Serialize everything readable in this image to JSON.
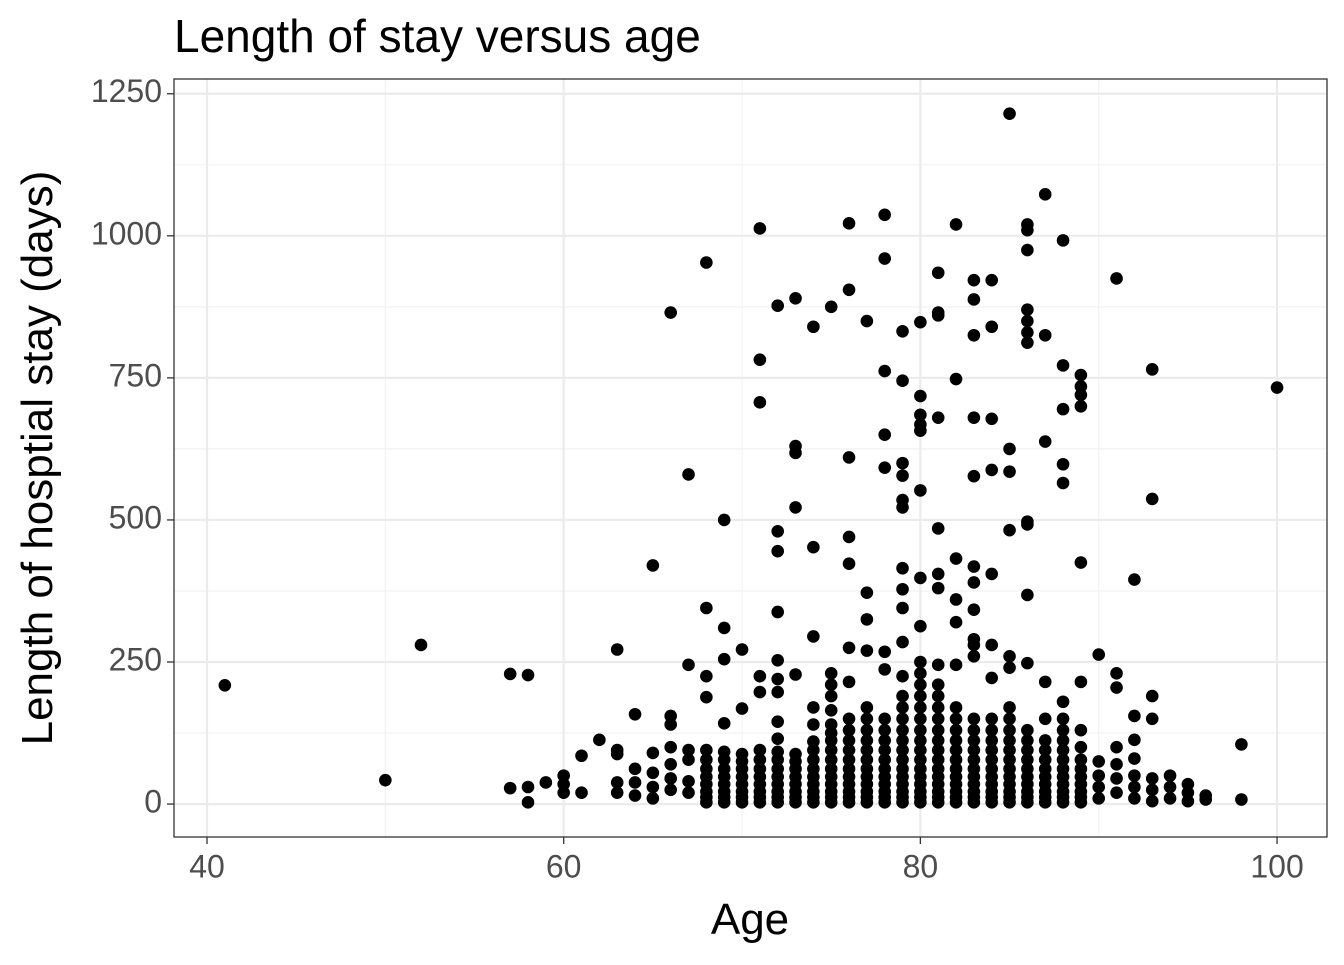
{
  "chart_data": {
    "type": "scatter",
    "title": "Length of stay versus age",
    "x_label": "Age",
    "y_label": "Length of hosptial stay (days)",
    "xlim": [
      38.15,
      102.8
    ],
    "ylim": [
      -58,
      1276
    ],
    "xticks": [
      40,
      60,
      80,
      100
    ],
    "yticks": [
      0,
      250,
      500,
      750,
      1000,
      1250
    ],
    "x_minor_grid": [
      50,
      70,
      90
    ],
    "y_minor_grid": [
      125,
      375,
      625,
      875,
      1125
    ],
    "grid": true,
    "color": "#000000",
    "x": [
      41,
      50,
      52,
      57,
      57,
      58,
      58,
      58,
      59,
      60,
      60,
      60,
      61,
      61,
      62,
      63,
      63,
      63,
      63,
      63,
      64,
      64,
      64,
      64,
      65,
      65,
      65,
      65,
      65,
      66,
      66,
      66,
      66,
      66,
      66,
      66,
      67,
      67,
      67,
      67,
      67,
      67,
      68,
      68,
      68,
      68,
      68,
      68,
      68,
      68,
      68,
      68,
      68,
      68,
      69,
      69,
      69,
      69,
      69,
      69,
      69,
      69,
      69,
      69,
      69,
      69,
      70,
      70,
      70,
      70,
      70,
      70,
      70,
      70,
      70,
      70,
      71,
      71,
      71,
      71,
      71,
      71,
      71,
      71,
      71,
      71,
      71,
      71,
      71,
      72,
      72,
      72,
      72,
      72,
      72,
      72,
      72,
      72,
      72,
      72,
      72,
      72,
      72,
      72,
      72,
      72,
      73,
      73,
      73,
      73,
      73,
      73,
      73,
      73,
      73,
      73,
      73,
      73,
      73,
      74,
      74,
      74,
      74,
      74,
      74,
      74,
      74,
      74,
      74,
      74,
      74,
      74,
      74,
      75,
      75,
      75,
      75,
      75,
      75,
      75,
      75,
      75,
      75,
      75,
      75,
      75,
      75,
      75,
      75,
      76,
      76,
      76,
      76,
      76,
      76,
      76,
      76,
      76,
      76,
      76,
      76,
      76,
      76,
      76,
      76,
      76,
      76,
      77,
      77,
      77,
      77,
      77,
      77,
      77,
      77,
      77,
      77,
      77,
      77,
      77,
      77,
      77,
      77,
      78,
      78,
      78,
      78,
      78,
      78,
      78,
      78,
      78,
      78,
      78,
      78,
      78,
      78,
      78,
      78,
      78,
      78,
      79,
      79,
      79,
      79,
      79,
      79,
      79,
      79,
      79,
      79,
      79,
      79,
      79,
      79,
      79,
      79,
      79,
      79,
      79,
      79,
      79,
      79,
      79,
      79,
      80,
      80,
      80,
      80,
      80,
      80,
      80,
      80,
      80,
      80,
      80,
      80,
      80,
      80,
      80,
      80,
      80,
      80,
      80,
      80,
      80,
      80,
      80,
      80,
      81,
      81,
      81,
      81,
      81,
      81,
      81,
      81,
      81,
      81,
      81,
      81,
      81,
      81,
      81,
      81,
      81,
      81,
      81,
      81,
      81,
      81,
      82,
      82,
      82,
      82,
      82,
      82,
      82,
      82,
      82,
      82,
      82,
      82,
      82,
      82,
      82,
      82,
      82,
      82,
      83,
      83,
      83,
      83,
      83,
      83,
      83,
      83,
      83,
      83,
      83,
      83,
      83,
      83,
      83,
      83,
      83,
      83,
      83,
      83,
      83,
      83,
      84,
      84,
      84,
      84,
      84,
      84,
      84,
      84,
      84,
      84,
      84,
      84,
      84,
      84,
      84,
      84,
      84,
      84,
      85,
      85,
      85,
      85,
      85,
      85,
      85,
      85,
      85,
      85,
      85,
      85,
      85,
      85,
      85,
      85,
      85,
      85,
      86,
      86,
      86,
      86,
      86,
      86,
      86,
      86,
      86,
      86,
      86,
      86,
      86,
      86,
      86,
      86,
      86,
      86,
      86,
      86,
      86,
      87,
      87,
      87,
      87,
      87,
      87,
      87,
      87,
      87,
      87,
      87,
      87,
      87,
      87,
      88,
      88,
      88,
      88,
      88,
      88,
      88,
      88,
      88,
      88,
      88,
      88,
      88,
      88,
      88,
      88,
      88,
      89,
      89,
      89,
      89,
      89,
      89,
      89,
      89,
      89,
      89,
      89,
      89,
      89,
      89,
      89,
      90,
      90,
      90,
      90,
      90,
      91,
      91,
      91,
      91,
      91,
      91,
      91,
      92,
      92,
      92,
      92,
      92,
      92,
      92,
      93,
      93,
      93,
      93,
      93,
      93,
      93,
      94,
      94,
      94,
      95,
      95,
      95,
      96,
      96,
      98,
      98,
      100
    ],
    "values": [
      209,
      42,
      280,
      229,
      28,
      227,
      30,
      3,
      38,
      50,
      35,
      20,
      85,
      20,
      113,
      272,
      95,
      88,
      38,
      20,
      158,
      62,
      38,
      15,
      420,
      90,
      55,
      30,
      10,
      865,
      155,
      140,
      100,
      70,
      45,
      25,
      580,
      245,
      95,
      78,
      40,
      20,
      953,
      345,
      225,
      188,
      3,
      12,
      22,
      35,
      48,
      62,
      78,
      95,
      500,
      310,
      255,
      142,
      3,
      12,
      22,
      35,
      48,
      62,
      78,
      92,
      272,
      168,
      3,
      12,
      22,
      35,
      48,
      62,
      75,
      88,
      1013,
      782,
      707,
      225,
      197,
      3,
      12,
      22,
      35,
      48,
      62,
      78,
      95,
      877,
      480,
      445,
      338,
      253,
      220,
      197,
      145,
      115,
      3,
      12,
      22,
      35,
      48,
      62,
      78,
      92,
      890,
      630,
      618,
      522,
      228,
      3,
      12,
      22,
      35,
      48,
      62,
      75,
      88,
      840,
      452,
      295,
      170,
      140,
      3,
      12,
      22,
      35,
      48,
      62,
      78,
      95,
      110,
      875,
      230,
      210,
      190,
      165,
      140,
      3,
      12,
      22,
      35,
      48,
      62,
      78,
      95,
      112,
      125,
      1022,
      905,
      610,
      470,
      423,
      275,
      215,
      3,
      12,
      22,
      35,
      48,
      62,
      78,
      95,
      112,
      130,
      150,
      850,
      372,
      325,
      270,
      3,
      12,
      22,
      35,
      48,
      62,
      78,
      95,
      112,
      130,
      150,
      170,
      1037,
      960,
      762,
      650,
      592,
      268,
      237,
      3,
      12,
      22,
      35,
      48,
      62,
      78,
      95,
      112,
      130,
      150,
      832,
      745,
      600,
      578,
      535,
      522,
      415,
      378,
      345,
      285,
      225,
      3,
      12,
      22,
      35,
      48,
      62,
      78,
      95,
      112,
      130,
      150,
      170,
      190,
      848,
      718,
      685,
      668,
      657,
      552,
      398,
      313,
      250,
      3,
      12,
      22,
      35,
      48,
      62,
      78,
      95,
      112,
      130,
      150,
      170,
      190,
      210,
      230,
      935,
      865,
      860,
      680,
      485,
      405,
      380,
      245,
      3,
      12,
      22,
      35,
      48,
      62,
      78,
      95,
      112,
      130,
      150,
      170,
      190,
      210,
      1020,
      748,
      432,
      360,
      320,
      245,
      3,
      12,
      22,
      35,
      48,
      62,
      78,
      95,
      112,
      130,
      150,
      170,
      922,
      888,
      825,
      680,
      577,
      418,
      390,
      342,
      290,
      280,
      260,
      3,
      12,
      22,
      35,
      48,
      62,
      78,
      95,
      112,
      130,
      150,
      922,
      840,
      678,
      588,
      405,
      280,
      222,
      3,
      12,
      22,
      35,
      48,
      62,
      78,
      95,
      112,
      130,
      150,
      1215,
      625,
      585,
      482,
      260,
      240,
      3,
      12,
      22,
      35,
      48,
      62,
      78,
      95,
      112,
      130,
      150,
      170,
      1020,
      1010,
      975,
      870,
      850,
      830,
      812,
      497,
      492,
      368,
      248,
      3,
      12,
      22,
      35,
      48,
      62,
      78,
      95,
      112,
      130,
      1073,
      825,
      638,
      215,
      3,
      12,
      22,
      35,
      48,
      62,
      78,
      95,
      112,
      150,
      992,
      772,
      695,
      598,
      565,
      180,
      3,
      12,
      22,
      35,
      48,
      62,
      78,
      95,
      112,
      130,
      150,
      755,
      735,
      720,
      700,
      425,
      215,
      3,
      12,
      22,
      35,
      48,
      62,
      78,
      100,
      130,
      263,
      10,
      30,
      50,
      75,
      925,
      230,
      205,
      20,
      45,
      70,
      100,
      395,
      155,
      113,
      10,
      30,
      50,
      80,
      765,
      537,
      190,
      150,
      5,
      25,
      45,
      10,
      30,
      50,
      5,
      20,
      35,
      15,
      8,
      105,
      8,
      733
    ]
  }
}
